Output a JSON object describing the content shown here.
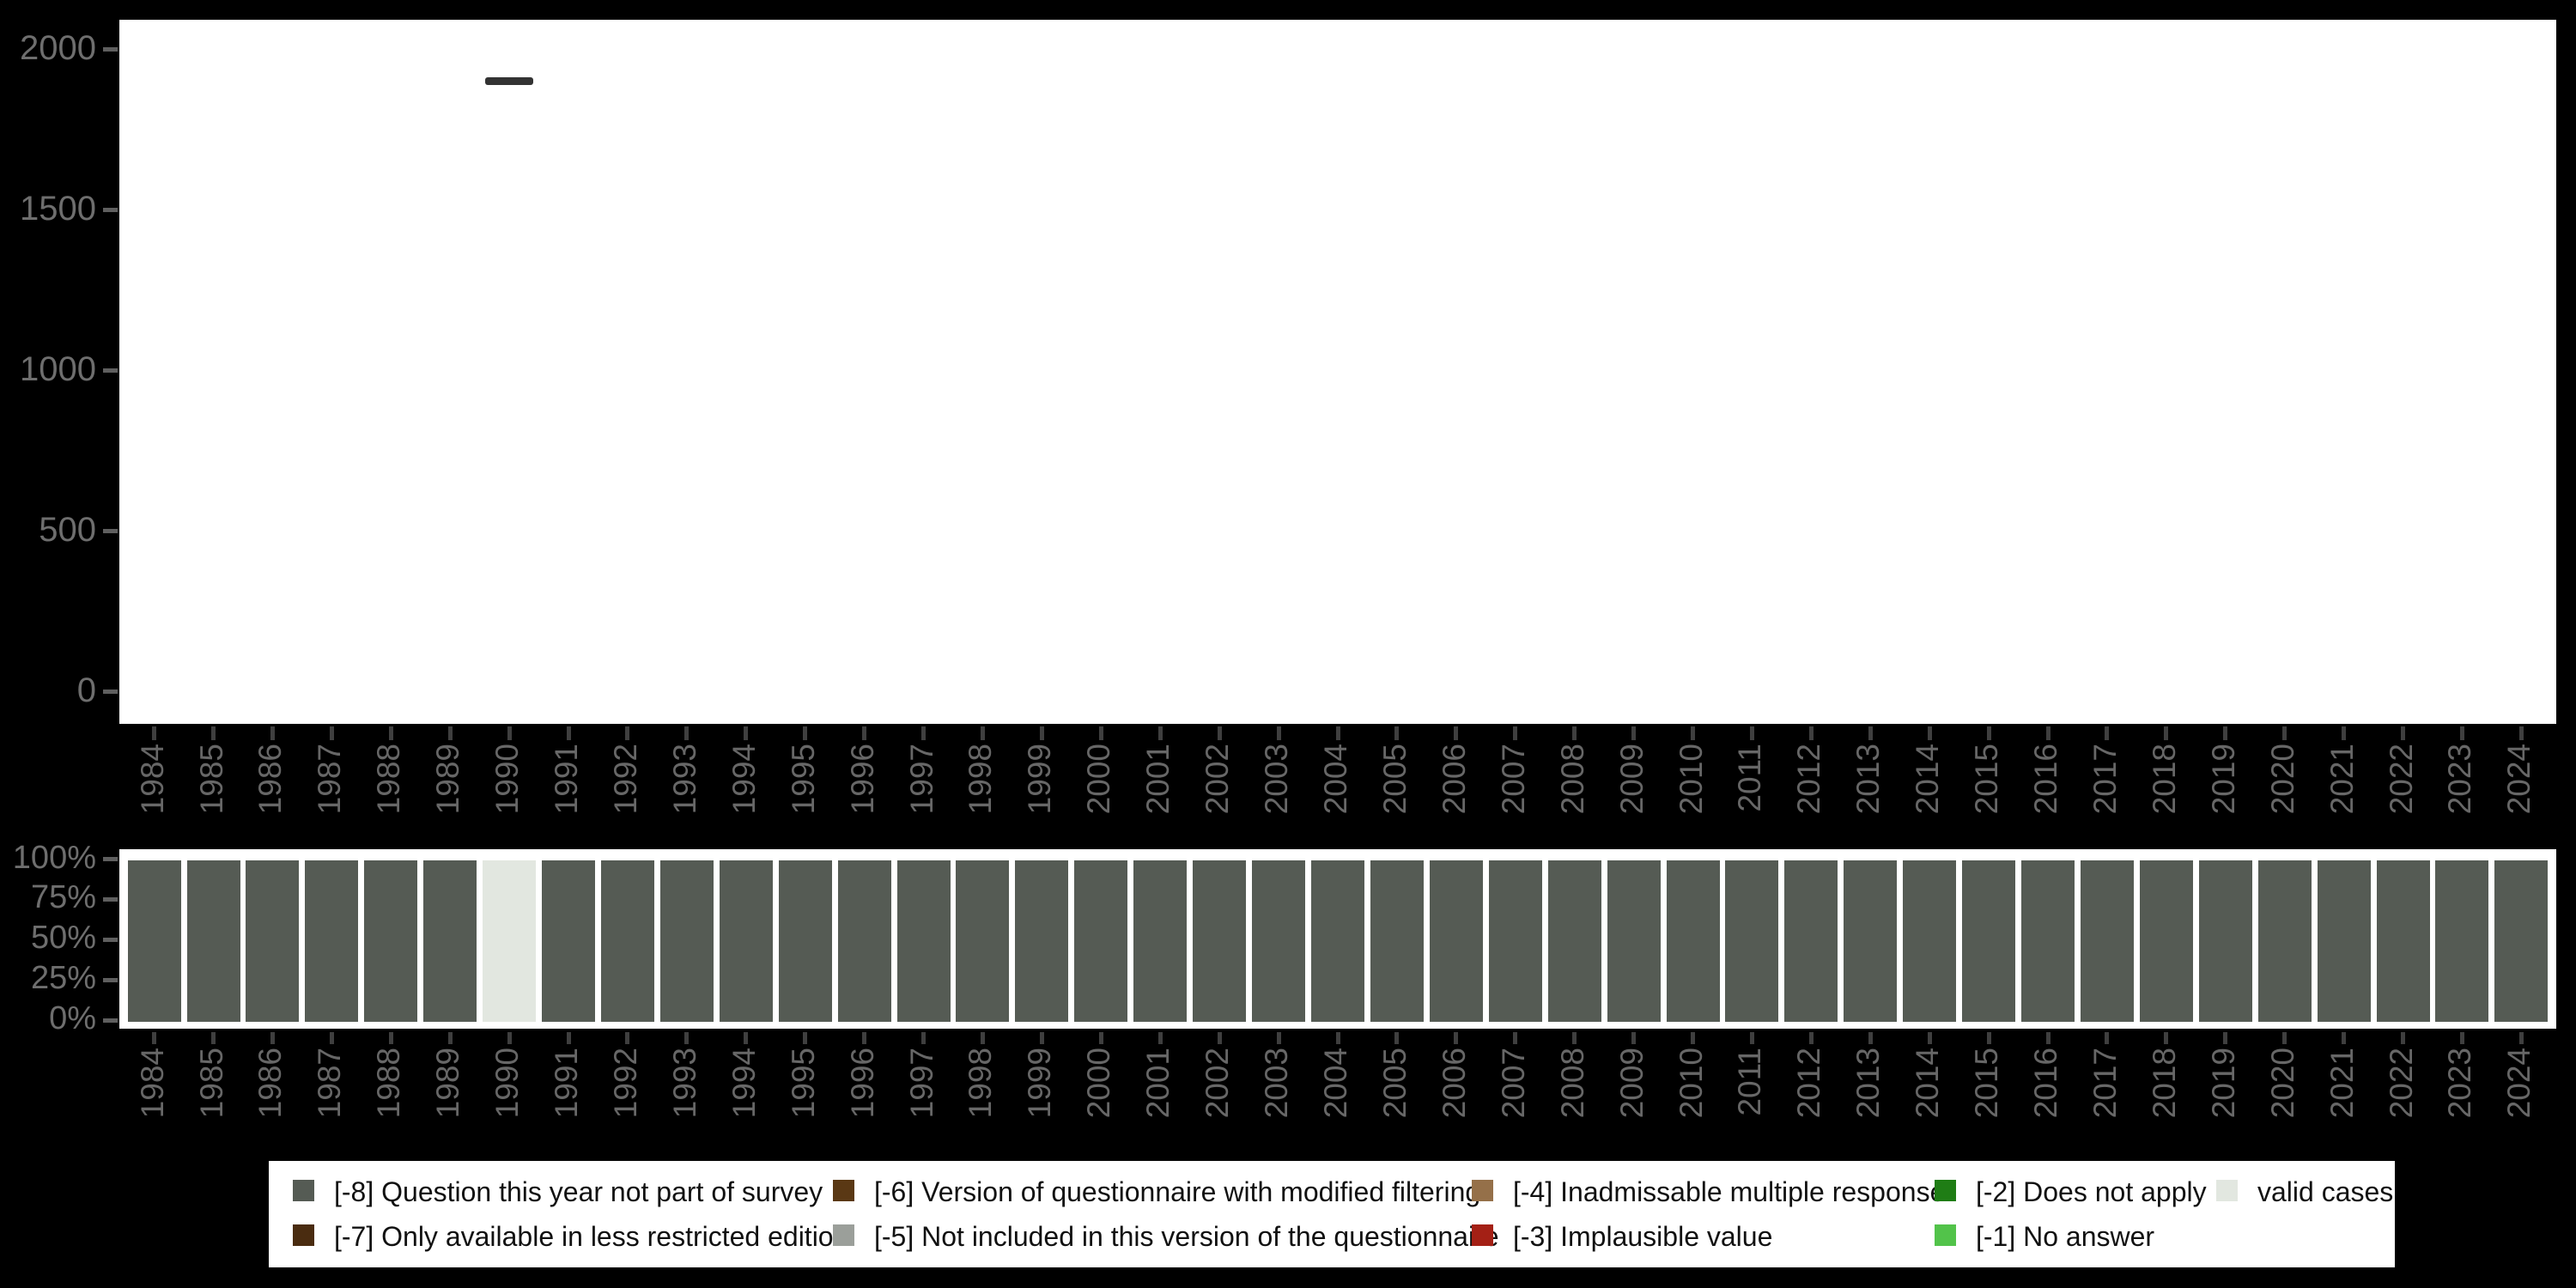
{
  "background_color": "#000000",
  "plot_background_color": "#ffffff",
  "axis_label_color": "#6e6e6e",
  "tick_mark_color": "#3f3f3f",
  "chart_data": [
    {
      "type": "bar",
      "title": "",
      "xlabel": "",
      "ylabel": "",
      "grid": false,
      "x": [
        "1984",
        "1985",
        "1986",
        "1987",
        "1988",
        "1989",
        "1990",
        "1991",
        "1992",
        "1993",
        "1994",
        "1995",
        "1996",
        "1997",
        "1998",
        "1999",
        "2000",
        "2001",
        "2002",
        "2003",
        "2004",
        "2005",
        "2006",
        "2007",
        "2008",
        "2009",
        "2010",
        "2011",
        "2012",
        "2013",
        "2014",
        "2015",
        "2016",
        "2017",
        "2018",
        "2019",
        "2020",
        "2021",
        "2022",
        "2023",
        "2024"
      ],
      "ylim": [
        0,
        2000
      ],
      "ytick_labels": [
        "0",
        "500",
        "1000",
        "1500",
        "2000"
      ],
      "ytick_values": [
        0,
        500,
        1000,
        1500,
        2000
      ],
      "series": [
        {
          "name": "valid cases",
          "marker": "dash",
          "color": "#333333",
          "values": [
            null,
            null,
            null,
            null,
            null,
            null,
            1900,
            null,
            null,
            null,
            null,
            null,
            null,
            null,
            null,
            null,
            null,
            null,
            null,
            null,
            null,
            null,
            null,
            null,
            null,
            null,
            null,
            null,
            null,
            null,
            null,
            null,
            null,
            null,
            null,
            null,
            null,
            null,
            null,
            null,
            null
          ]
        }
      ]
    },
    {
      "type": "bar",
      "stacked": true,
      "percent": true,
      "title": "",
      "xlabel": "",
      "ylabel": "",
      "grid": false,
      "categories": [
        "1984",
        "1985",
        "1986",
        "1987",
        "1988",
        "1989",
        "1990",
        "1991",
        "1992",
        "1993",
        "1994",
        "1995",
        "1996",
        "1997",
        "1998",
        "1999",
        "2000",
        "2001",
        "2002",
        "2003",
        "2004",
        "2005",
        "2006",
        "2007",
        "2008",
        "2009",
        "2010",
        "2011",
        "2012",
        "2013",
        "2014",
        "2015",
        "2016",
        "2017",
        "2018",
        "2019",
        "2020",
        "2021",
        "2022",
        "2023",
        "2024"
      ],
      "ytick_labels": [
        "0%",
        "25%",
        "50%",
        "75%",
        "100%"
      ],
      "ytick_values": [
        0,
        25,
        50,
        75,
        100
      ],
      "series": [
        {
          "name": "[-8] Question this year not part of survey",
          "color": "#555b54",
          "values": [
            100,
            100,
            100,
            100,
            100,
            100,
            0,
            100,
            100,
            100,
            100,
            100,
            100,
            100,
            100,
            100,
            100,
            100,
            100,
            100,
            100,
            100,
            100,
            100,
            100,
            100,
            100,
            100,
            100,
            100,
            100,
            100,
            100,
            100,
            100,
            100,
            100,
            100,
            100,
            100,
            100
          ]
        },
        {
          "name": "valid cases",
          "color": "#e2e7e0",
          "values": [
            0,
            0,
            0,
            0,
            0,
            0,
            100,
            0,
            0,
            0,
            0,
            0,
            0,
            0,
            0,
            0,
            0,
            0,
            0,
            0,
            0,
            0,
            0,
            0,
            0,
            0,
            0,
            0,
            0,
            0,
            0,
            0,
            0,
            0,
            0,
            0,
            0,
            0,
            0,
            0,
            0
          ]
        }
      ]
    }
  ],
  "legend": {
    "background": "#ffffff",
    "items": [
      {
        "label": "[-8] Question this year not part of survey",
        "color": "#555b54",
        "col": 0,
        "row": 0
      },
      {
        "label": "[-7] Only available in less restricted edition",
        "color": "#4a2c10",
        "col": 0,
        "row": 1
      },
      {
        "label": "[-6] Version of questionnaire with modified filtering",
        "color": "#5a3814",
        "col": 1,
        "row": 0
      },
      {
        "label": "[-5] Not included in this version of the questionnaire",
        "color": "#9b9f9a",
        "col": 1,
        "row": 1
      },
      {
        "label": "[-4] Inadmissable multiple response",
        "color": "#957049",
        "col": 2,
        "row": 0
      },
      {
        "label": "[-3] Implausible value",
        "color": "#a42015",
        "col": 2,
        "row": 1
      },
      {
        "label": "[-2] Does not apply",
        "color": "#1f7d15",
        "col": 3,
        "row": 0
      },
      {
        "label": "[-1] No answer",
        "color": "#52c34a",
        "col": 3,
        "row": 1
      },
      {
        "label": "valid cases",
        "color": "#e2e7e0",
        "col": 4,
        "row": 0
      }
    ]
  }
}
